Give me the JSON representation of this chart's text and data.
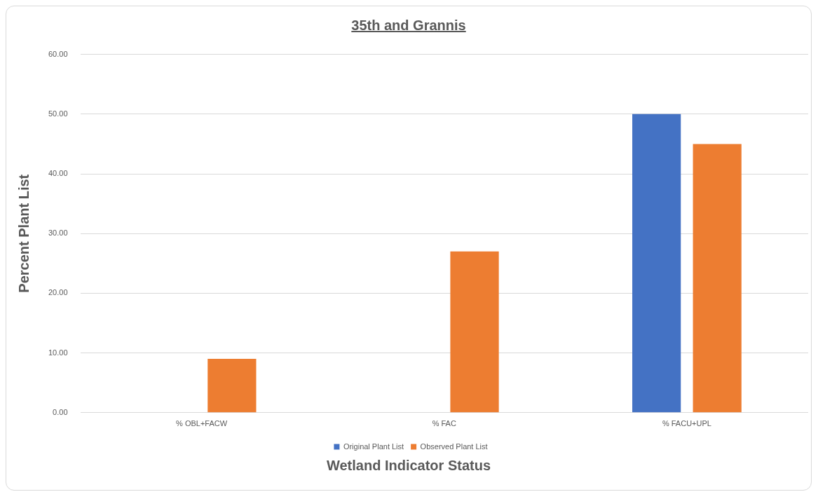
{
  "chart_data": {
    "type": "bar",
    "title": "35th and Grannis",
    "xlabel": "Wetland Indicator Status",
    "ylabel": "Percent Plant List",
    "categories": [
      "% OBL+FACW",
      "% FAC",
      "% FACU+UPL"
    ],
    "series": [
      {
        "name": "Original Plant List",
        "color": "#4472c4",
        "values": [
          0,
          0,
          50
        ]
      },
      {
        "name": "Observed Plant List",
        "color": "#ed7d31",
        "values": [
          9,
          27,
          45
        ]
      }
    ],
    "ylim": [
      0,
      60
    ],
    "yticks": [
      {
        "value": 0,
        "label": "0.00"
      },
      {
        "value": 10,
        "label": "10.00"
      },
      {
        "value": 20,
        "label": "20.00"
      },
      {
        "value": 30,
        "label": "30.00"
      },
      {
        "value": 40,
        "label": "40.00"
      },
      {
        "value": 50,
        "label": "50.00"
      },
      {
        "value": 60,
        "label": "60.00"
      }
    ],
    "grid": "y",
    "legend": "bottom"
  }
}
